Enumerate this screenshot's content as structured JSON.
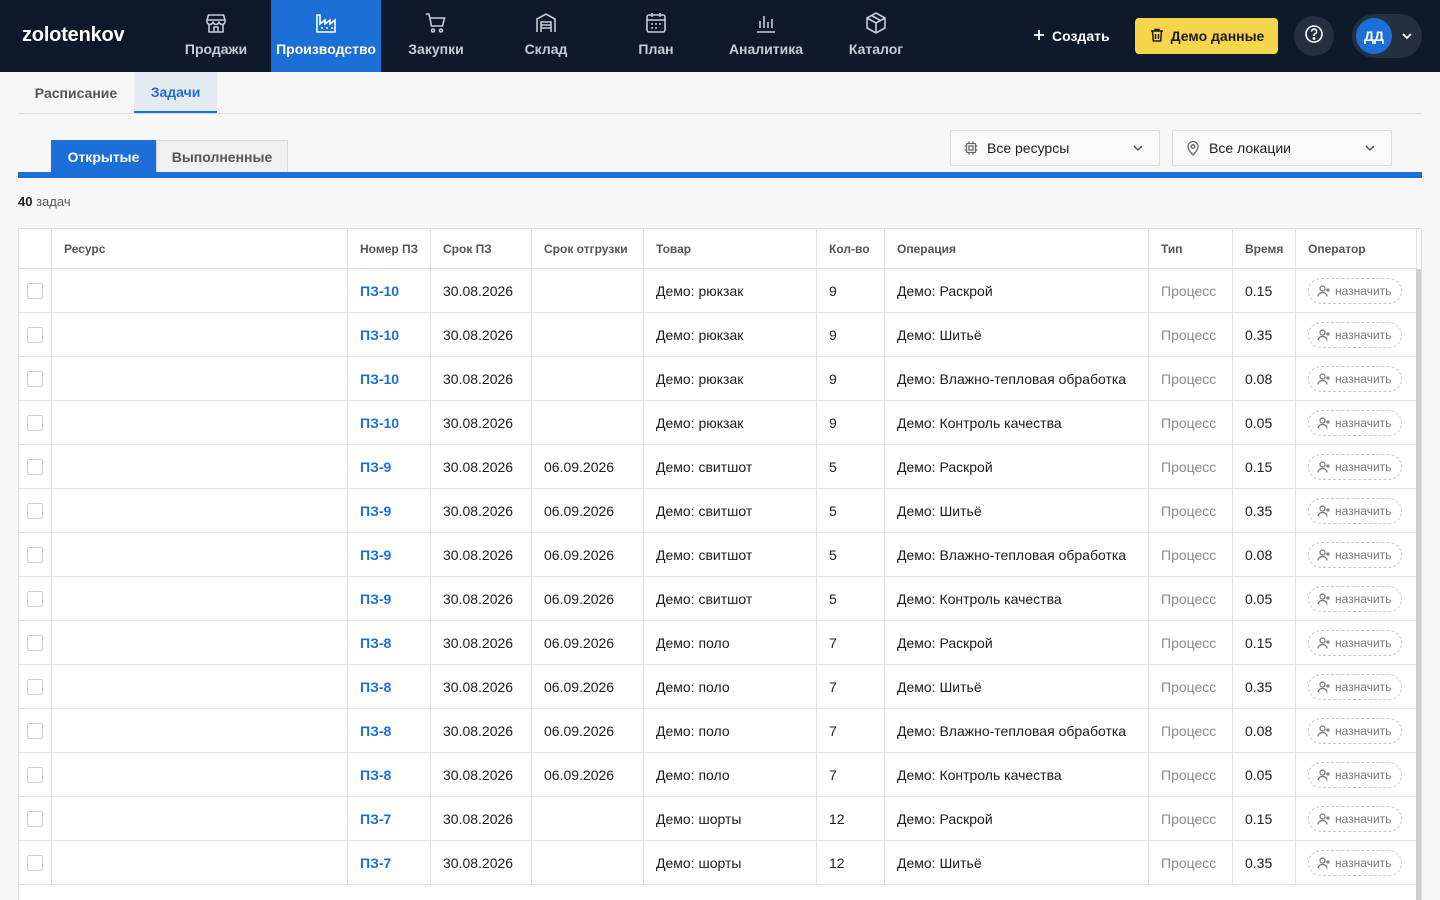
{
  "app": {
    "logo": "zolotenkov"
  },
  "nav": [
    {
      "label": "Продажи",
      "icon": "store-icon",
      "active": false
    },
    {
      "label": "Производство",
      "icon": "factory-icon",
      "active": true
    },
    {
      "label": "Закупки",
      "icon": "cart-icon",
      "active": false
    },
    {
      "label": "Склад",
      "icon": "warehouse-icon",
      "active": false
    },
    {
      "label": "План",
      "icon": "calendar-icon",
      "active": false
    },
    {
      "label": "Аналитика",
      "icon": "bar-chart-icon",
      "active": false
    },
    {
      "label": "Каталог",
      "icon": "box-icon",
      "active": false
    }
  ],
  "header": {
    "create_label": "Создать",
    "demo_label": "Демо данные",
    "user_initials": "ДД"
  },
  "subtabs": {
    "schedule": "Расписание",
    "tasks": "Задачи"
  },
  "status_tabs": {
    "open": "Открытые",
    "done": "Выполненные"
  },
  "filters": {
    "resources": "Все ресурсы",
    "locations": "Все локации"
  },
  "summary": {
    "count": "40",
    "count_label": "задач"
  },
  "columns": {
    "resource": "Ресурс",
    "order": "Номер ПЗ",
    "due": "Срок ПЗ",
    "ship": "Срок отгрузки",
    "product": "Товар",
    "qty": "Кол-во",
    "operation": "Операция",
    "type": "Тип",
    "time": "Время",
    "operator": "Оператор"
  },
  "assign_label": "назначить",
  "rows": [
    {
      "resource": "",
      "order": "ПЗ-10",
      "due": "30.08.2026",
      "ship": "",
      "product": "Демо: рюкзак",
      "qty": "9",
      "operation": "Демо: Раскрой",
      "type": "Процесс",
      "time": "0.15"
    },
    {
      "resource": "",
      "order": "ПЗ-10",
      "due": "30.08.2026",
      "ship": "",
      "product": "Демо: рюкзак",
      "qty": "9",
      "operation": "Демо: Шитьё",
      "type": "Процесс",
      "time": "0.35"
    },
    {
      "resource": "",
      "order": "ПЗ-10",
      "due": "30.08.2026",
      "ship": "",
      "product": "Демо: рюкзак",
      "qty": "9",
      "operation": "Демо: Влажно-тепловая обработка",
      "type": "Процесс",
      "time": "0.08"
    },
    {
      "resource": "",
      "order": "ПЗ-10",
      "due": "30.08.2026",
      "ship": "",
      "product": "Демо: рюкзак",
      "qty": "9",
      "operation": "Демо: Контроль качества",
      "type": "Процесс",
      "time": "0.05"
    },
    {
      "resource": "",
      "order": "ПЗ-9",
      "due": "30.08.2026",
      "ship": "06.09.2026",
      "product": "Демо: свитшот",
      "qty": "5",
      "operation": "Демо: Раскрой",
      "type": "Процесс",
      "time": "0.15"
    },
    {
      "resource": "",
      "order": "ПЗ-9",
      "due": "30.08.2026",
      "ship": "06.09.2026",
      "product": "Демо: свитшот",
      "qty": "5",
      "operation": "Демо: Шитьё",
      "type": "Процесс",
      "time": "0.35"
    },
    {
      "resource": "",
      "order": "ПЗ-9",
      "due": "30.08.2026",
      "ship": "06.09.2026",
      "product": "Демо: свитшот",
      "qty": "5",
      "operation": "Демо: Влажно-тепловая обработка",
      "type": "Процесс",
      "time": "0.08"
    },
    {
      "resource": "",
      "order": "ПЗ-9",
      "due": "30.08.2026",
      "ship": "06.09.2026",
      "product": "Демо: свитшот",
      "qty": "5",
      "operation": "Демо: Контроль качества",
      "type": "Процесс",
      "time": "0.05"
    },
    {
      "resource": "",
      "order": "ПЗ-8",
      "due": "30.08.2026",
      "ship": "06.09.2026",
      "product": "Демо: поло",
      "qty": "7",
      "operation": "Демо: Раскрой",
      "type": "Процесс",
      "time": "0.15"
    },
    {
      "resource": "",
      "order": "ПЗ-8",
      "due": "30.08.2026",
      "ship": "06.09.2026",
      "product": "Демо: поло",
      "qty": "7",
      "operation": "Демо: Шитьё",
      "type": "Процесс",
      "time": "0.35"
    },
    {
      "resource": "",
      "order": "ПЗ-8",
      "due": "30.08.2026",
      "ship": "06.09.2026",
      "product": "Демо: поло",
      "qty": "7",
      "operation": "Демо: Влажно-тепловая обработка",
      "type": "Процесс",
      "time": "0.08"
    },
    {
      "resource": "",
      "order": "ПЗ-8",
      "due": "30.08.2026",
      "ship": "06.09.2026",
      "product": "Демо: поло",
      "qty": "7",
      "operation": "Демо: Контроль качества",
      "type": "Процесс",
      "time": "0.05"
    },
    {
      "resource": "",
      "order": "ПЗ-7",
      "due": "30.08.2026",
      "ship": "",
      "product": "Демо: шорты",
      "qty": "12",
      "operation": "Демо: Раскрой",
      "type": "Процесс",
      "time": "0.15"
    },
    {
      "resource": "",
      "order": "ПЗ-7",
      "due": "30.08.2026",
      "ship": "",
      "product": "Демо: шорты",
      "qty": "12",
      "operation": "Демо: Шитьё",
      "type": "Процесс",
      "time": "0.35"
    }
  ]
}
